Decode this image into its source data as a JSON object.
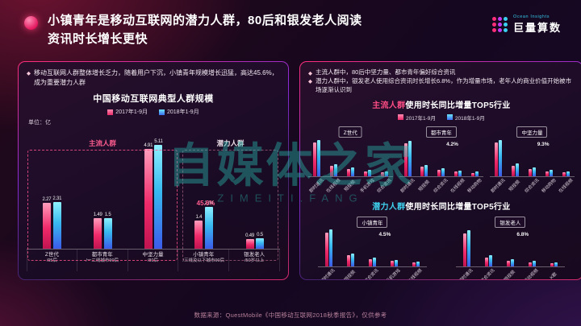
{
  "page": {
    "title_line1": "小镇青年是移动互联网的潜力人群，80后和银发老人阅读",
    "title_line2": "资讯时长增长更快",
    "bullet_marker": "◆",
    "footer": "数据来源：QuestMobile《中国移动互联网2018秋季报告》，仅供参考"
  },
  "logo": {
    "en": "Ocean Insights",
    "cn": "巨量算数"
  },
  "watermark": {
    "main": "自媒体之家",
    "sub": "ZIMEITI.FANG"
  },
  "legend": {
    "s2017": "2017年1-9月",
    "s2018": "2018年1-9月"
  },
  "left_panel": {
    "bullet": "移动互联网人群整体增长乏力，随着用户下沉，小镇青年规模增长迅猛，高达45.6%，成为重要潜力人群"
  },
  "right_panel": {
    "bullet1": "主流人群中，80后中坚力量、都市青年偏好综合资讯",
    "bullet2": "潜力人群中，银发老人使用综合资讯时长增长6.8%，作为增量市场，老年人的商业价值开始被市场逐渐认识到",
    "chart1_title_highlight": "主流人群",
    "chart1_title_rest": "使用时长同比增量TOP5行业",
    "chart2_title_highlight": "潜力人群",
    "chart2_title_rest": "使用时长同比增量TOP5行业"
  },
  "chart_data": [
    {
      "type": "bar",
      "title": "中国移动互联网典型人群规模",
      "unit": "单位：亿",
      "ymax": 5.5,
      "show_values": true,
      "categories": [
        {
          "name": "Z世代",
          "sub": "/95后"
        },
        {
          "name": "都市青年",
          "sub": "/一二线城市90后"
        },
        {
          "name": "中坚力量",
          "sub": "/80后"
        },
        {
          "name": "小镇青年",
          "sub": "/三线及以下城市90后"
        },
        {
          "name": "银发老人",
          "sub": "/50岁以上"
        }
      ],
      "series": [
        {
          "name": "2017年1-9月",
          "values": [
            2.27,
            1.49,
            4.91,
            1.4,
            0.49
          ]
        },
        {
          "name": "2018年1-9月",
          "values": [
            2.31,
            1.5,
            5.11,
            2.04,
            0.5
          ]
        }
      ],
      "groups": [
        {
          "label": "主流人群",
          "span": [
            0,
            2
          ]
        },
        {
          "label": "潜力人群",
          "span": [
            3,
            4
          ]
        }
      ],
      "annotation": {
        "text": "45.6%",
        "category": "小镇青年"
      }
    },
    {
      "type": "bar",
      "chip": "Z世代",
      "ymax": 100,
      "categories": [
        "即时通讯",
        "在线视频",
        "短视频",
        "手机游戏",
        "综合资讯"
      ],
      "series": [
        {
          "name": "2017年1-9月",
          "values": [
            86,
            25,
            17,
            12,
            9
          ]
        },
        {
          "name": "2018年1-9月",
          "values": [
            92,
            29,
            21,
            15,
            12
          ]
        }
      ]
    },
    {
      "type": "bar",
      "chip": "都市青年",
      "ymax": 100,
      "categories": [
        "即时通讯",
        "短视频",
        "综合资讯",
        "在线视频",
        "移动购物"
      ],
      "series": [
        {
          "name": "2017年1-9月",
          "values": [
            84,
            23,
            15,
            11,
            8
          ]
        },
        {
          "name": "2018年1-9月",
          "values": [
            90,
            27,
            19,
            14,
            11
          ]
        }
      ],
      "annotation": {
        "text": "4.2%",
        "category": "综合资讯"
      }
    },
    {
      "type": "bar",
      "chip": "中坚力量",
      "ymax": 100,
      "categories": [
        "即时通讯",
        "短视频",
        "综合资讯",
        "移动购物",
        "在线视频"
      ],
      "series": [
        {
          "name": "2017年1-9月",
          "values": [
            85,
            26,
            17,
            12,
            9
          ]
        },
        {
          "name": "2018年1-9月",
          "values": [
            92,
            31,
            21,
            15,
            11
          ]
        }
      ],
      "annotation": {
        "text": "9.3%",
        "category": "综合资讯"
      }
    },
    {
      "type": "bar",
      "chip": "小镇青年",
      "ymax": 100,
      "categories": [
        "即时通讯",
        "短视频",
        "综合资讯",
        "手机游戏",
        "在线视频"
      ],
      "series": [
        {
          "name": "2017年1-9月",
          "values": [
            86,
            27,
            18,
            13,
            9
          ]
        },
        {
          "name": "2018年1-9月",
          "values": [
            93,
            32,
            22,
            16,
            12
          ]
        }
      ],
      "annotation": {
        "text": "4.5%",
        "category": "综合资讯"
      }
    },
    {
      "type": "bar",
      "chip": "银发老人",
      "ymax": 100,
      "categories": [
        "即时通讯",
        "综合资讯",
        "短视频",
        "移动视频",
        "K歌"
      ],
      "series": [
        {
          "name": "2017年1-9月",
          "values": [
            83,
            22,
            14,
            10,
            7
          ]
        },
        {
          "name": "2018年1-9月",
          "values": [
            91,
            27,
            18,
            13,
            10
          ]
        }
      ],
      "annotation": {
        "text": "6.8%",
        "category": "综合资讯"
      }
    }
  ]
}
